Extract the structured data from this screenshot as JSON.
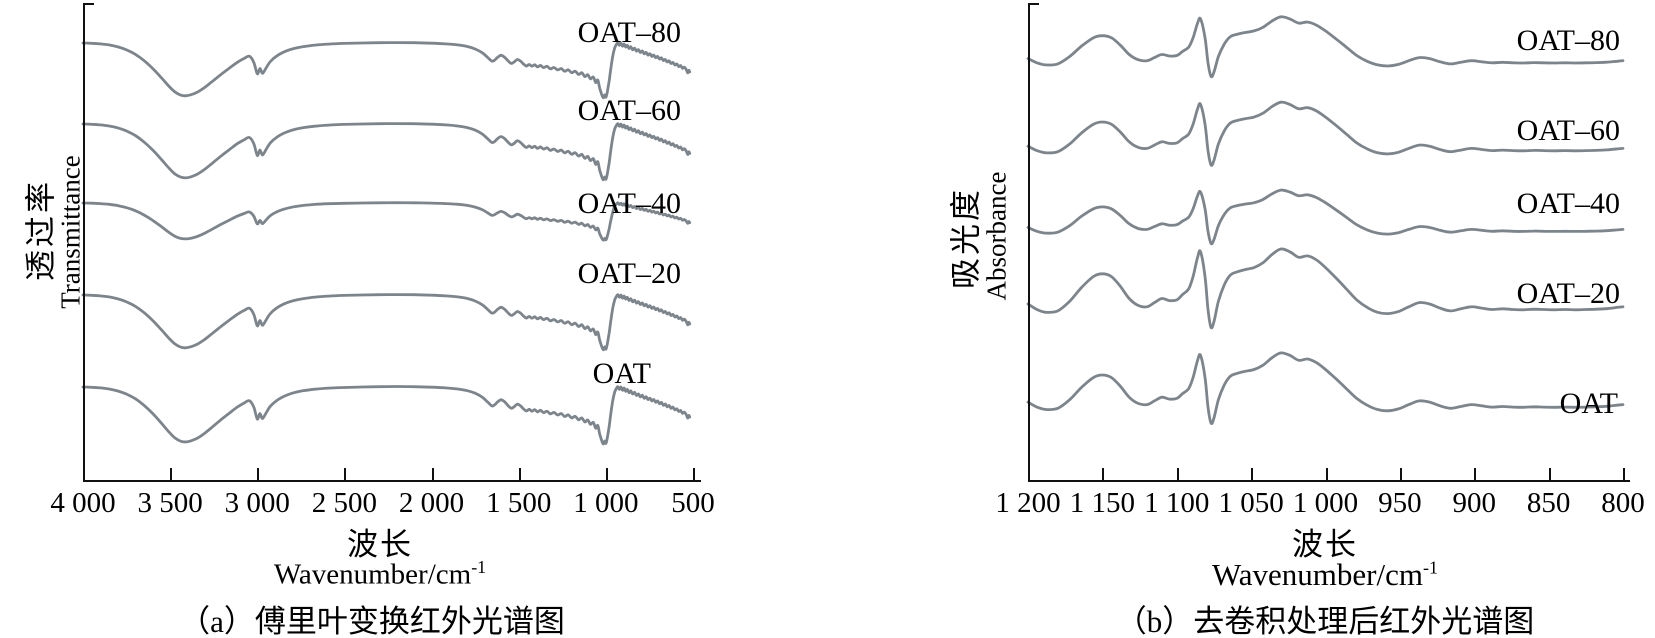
{
  "page": {
    "background": "#ffffff",
    "curve_color": "#7d858c",
    "axis_color": "#111111"
  },
  "panels": {
    "a": {
      "ylabel_cjk": "透过率",
      "ylabel_en": "Transmittance",
      "xlabel_cjk": "波长",
      "xlabel_en_base": "Wavenumber/cm",
      "xlabel_en_sup": "-1",
      "caption": "（a）傅里叶变换红外光谱图",
      "xtick_labels": [
        "4 000",
        "3 500",
        "3 000",
        "2 500",
        "2 000",
        "1 500",
        "1 000",
        "500"
      ]
    },
    "b": {
      "ylabel_cjk": "吸光度",
      "ylabel_en": "Absorbance",
      "xlabel_cjk": "波长",
      "xlabel_en_base": "Wavenumber/cm",
      "xlabel_en_sup": "-1",
      "caption": "（b）去卷积处理后红外光谱图",
      "xtick_labels": [
        "1 200",
        "1 150",
        "1 100",
        "1 050",
        "1 000",
        "950",
        "900",
        "850",
        "800"
      ]
    }
  },
  "chart_data": [
    {
      "panel": "a",
      "type": "line",
      "title": "（a）傅里叶变换红外光谱图",
      "xlabel": "波长 Wavenumber/cm-1",
      "ylabel": "透过率 Transmittance",
      "legend_position": "inline-right",
      "grid": false,
      "x_axis": {
        "max": 4000,
        "min": 500,
        "direction": "decreasing",
        "ticks": [
          4000,
          3500,
          3000,
          2500,
          2000,
          1500,
          1000,
          500
        ]
      },
      "y_axis": {
        "label": "Transmittance (arbitrary units, stacked offsets)",
        "ticks": []
      },
      "series": [
        {
          "name": "OAT–80",
          "relative_intensity": 1.0
        },
        {
          "name": "OAT–60",
          "relative_intensity": 1.02
        },
        {
          "name": "OAT–40",
          "relative_intensity": 0.68
        },
        {
          "name": "OAT–20",
          "relative_intensity": 1.0
        },
        {
          "name": "OAT",
          "relative_intensity": 1.04
        }
      ],
      "shared_profile_note": "transmittance vs wavenumber, 0-1 arbitrary scale, baseline 0.85; all five curves share this band shape and are vertically offset",
      "shared_profile": [
        [
          4000,
          0.85
        ],
        [
          3950,
          0.847
        ],
        [
          3900,
          0.84
        ],
        [
          3850,
          0.828
        ],
        [
          3800,
          0.806
        ],
        [
          3750,
          0.772
        ],
        [
          3700,
          0.722
        ],
        [
          3650,
          0.65
        ],
        [
          3600,
          0.56
        ],
        [
          3550,
          0.455
        ],
        [
          3505,
          0.355
        ],
        [
          3470,
          0.29
        ],
        [
          3440,
          0.258
        ],
        [
          3410,
          0.25
        ],
        [
          3380,
          0.262
        ],
        [
          3345,
          0.29
        ],
        [
          3305,
          0.34
        ],
        [
          3260,
          0.41
        ],
        [
          3210,
          0.49
        ],
        [
          3160,
          0.565
        ],
        [
          3115,
          0.63
        ],
        [
          3075,
          0.675
        ],
        [
          3045,
          0.7
        ],
        [
          3020,
          0.63
        ],
        [
          3000,
          0.5
        ],
        [
          2985,
          0.56
        ],
        [
          2970,
          0.505
        ],
        [
          2950,
          0.565
        ],
        [
          2925,
          0.64
        ],
        [
          2890,
          0.7
        ],
        [
          2850,
          0.745
        ],
        [
          2800,
          0.782
        ],
        [
          2740,
          0.808
        ],
        [
          2670,
          0.826
        ],
        [
          2590,
          0.838
        ],
        [
          2500,
          0.845
        ],
        [
          2400,
          0.85
        ],
        [
          2300,
          0.853
        ],
        [
          2200,
          0.855
        ],
        [
          2100,
          0.853
        ],
        [
          2000,
          0.848
        ],
        [
          1920,
          0.84
        ],
        [
          1850,
          0.828
        ],
        [
          1795,
          0.81
        ],
        [
          1750,
          0.782
        ],
        [
          1710,
          0.74
        ],
        [
          1678,
          0.685
        ],
        [
          1655,
          0.645
        ],
        [
          1640,
          0.652
        ],
        [
          1622,
          0.685
        ],
        [
          1602,
          0.71
        ],
        [
          1582,
          0.69
        ],
        [
          1560,
          0.645
        ],
        [
          1542,
          0.618
        ],
        [
          1526,
          0.635
        ],
        [
          1508,
          0.663
        ],
        [
          1490,
          0.645
        ],
        [
          1472,
          0.61
        ],
        [
          1456,
          0.588
        ],
        [
          1440,
          0.606
        ],
        [
          1424,
          0.586
        ],
        [
          1408,
          0.602
        ],
        [
          1392,
          0.578
        ],
        [
          1375,
          0.595
        ],
        [
          1357,
          0.57
        ],
        [
          1338,
          0.585
        ],
        [
          1318,
          0.556
        ],
        [
          1298,
          0.572
        ],
        [
          1276,
          0.544
        ],
        [
          1256,
          0.56
        ],
        [
          1236,
          0.528
        ],
        [
          1216,
          0.546
        ],
        [
          1196,
          0.512
        ],
        [
          1176,
          0.53
        ],
        [
          1156,
          0.492
        ],
        [
          1138,
          0.512
        ],
        [
          1120,
          0.468
        ],
        [
          1104,
          0.49
        ],
        [
          1088,
          0.442
        ],
        [
          1072,
          0.464
        ],
        [
          1058,
          0.4
        ],
        [
          1046,
          0.43
        ],
        [
          1036,
          0.34
        ],
        [
          1028,
          0.29
        ],
        [
          1020,
          0.245
        ],
        [
          1013,
          0.228
        ],
        [
          1006,
          0.26
        ],
        [
          999,
          0.235
        ],
        [
          991,
          0.3
        ],
        [
          981,
          0.42
        ],
        [
          970,
          0.58
        ],
        [
          959,
          0.715
        ],
        [
          949,
          0.795
        ],
        [
          940,
          0.832
        ],
        [
          931,
          0.853
        ],
        [
          922,
          0.824
        ],
        [
          913,
          0.849
        ],
        [
          904,
          0.814
        ],
        [
          895,
          0.838
        ],
        [
          886,
          0.803
        ],
        [
          877,
          0.824
        ],
        [
          867,
          0.788
        ],
        [
          857,
          0.808
        ],
        [
          846,
          0.773
        ],
        [
          835,
          0.792
        ],
        [
          824,
          0.757
        ],
        [
          813,
          0.775
        ],
        [
          802,
          0.742
        ],
        [
          791,
          0.76
        ],
        [
          780,
          0.727
        ],
        [
          769,
          0.744
        ],
        [
          758,
          0.712
        ],
        [
          747,
          0.728
        ],
        [
          736,
          0.698
        ],
        [
          725,
          0.713
        ],
        [
          714,
          0.683
        ],
        [
          703,
          0.698
        ],
        [
          692,
          0.667
        ],
        [
          681,
          0.682
        ],
        [
          670,
          0.65
        ],
        [
          659,
          0.664
        ],
        [
          648,
          0.634
        ],
        [
          637,
          0.648
        ],
        [
          626,
          0.617
        ],
        [
          615,
          0.63
        ],
        [
          604,
          0.6
        ],
        [
          593,
          0.612
        ],
        [
          582,
          0.582
        ],
        [
          571,
          0.594
        ],
        [
          560,
          0.563
        ],
        [
          549,
          0.575
        ],
        [
          538,
          0.545
        ],
        [
          530,
          0.51
        ],
        [
          524,
          0.54
        ],
        [
          519,
          0.522
        ]
      ]
    },
    {
      "panel": "b",
      "type": "line",
      "title": "（b）去卷积处理后红外光谱图",
      "xlabel": "波长 Wavenumber/cm-1",
      "ylabel": "吸光度 Absorbance",
      "legend_position": "inline-right",
      "grid": false,
      "x_axis": {
        "max": 1200,
        "min": 800,
        "direction": "decreasing",
        "ticks": [
          1200,
          1150,
          1100,
          1050,
          1000,
          950,
          900,
          850,
          800
        ]
      },
      "y_axis": {
        "label": "Absorbance (arbitrary units, stacked offsets)",
        "ticks": []
      },
      "series": [
        {
          "name": "OAT–80",
          "relative_intensity": 0.95
        },
        {
          "name": "OAT–60",
          "relative_intensity": 1.0
        },
        {
          "name": "OAT–40",
          "relative_intensity": 0.85
        },
        {
          "name": "OAT–20",
          "relative_intensity": 1.25
        },
        {
          "name": "OAT",
          "relative_intensity": 1.12
        }
      ],
      "shared_profile_note": "deconvoluted absorbance vs wavenumber, 0-1 arbitrary scale, baseline 0; all five curves share this band shape and are vertically offset",
      "shared_profile": [
        [
          1200,
          0.08
        ],
        [
          1194,
          0.04
        ],
        [
          1188,
          0.02
        ],
        [
          1180,
          0.03
        ],
        [
          1172,
          0.1
        ],
        [
          1164,
          0.2
        ],
        [
          1156,
          0.28
        ],
        [
          1150,
          0.3
        ],
        [
          1144,
          0.28
        ],
        [
          1138,
          0.21
        ],
        [
          1132,
          0.12
        ],
        [
          1126,
          0.07
        ],
        [
          1120,
          0.06
        ],
        [
          1115,
          0.09
        ],
        [
          1110,
          0.12
        ],
        [
          1105,
          0.105
        ],
        [
          1100,
          0.11
        ],
        [
          1096,
          0.15
        ],
        [
          1092,
          0.19
        ],
        [
          1089,
          0.28
        ],
        [
          1086,
          0.42
        ],
        [
          1084,
          0.46
        ],
        [
          1081,
          0.28
        ],
        [
          1079,
          0.04
        ],
        [
          1077,
          -0.09
        ],
        [
          1075,
          -0.05
        ],
        [
          1072,
          0.1
        ],
        [
          1068,
          0.22
        ],
        [
          1064,
          0.29
        ],
        [
          1059,
          0.315
        ],
        [
          1054,
          0.33
        ],
        [
          1048,
          0.345
        ],
        [
          1042,
          0.38
        ],
        [
          1036,
          0.44
        ],
        [
          1030,
          0.48
        ],
        [
          1024,
          0.46
        ],
        [
          1018,
          0.42
        ],
        [
          1012,
          0.43
        ],
        [
          1006,
          0.4
        ],
        [
          1000,
          0.345
        ],
        [
          993,
          0.27
        ],
        [
          986,
          0.19
        ],
        [
          979,
          0.11
        ],
        [
          972,
          0.055
        ],
        [
          965,
          0.02
        ],
        [
          958,
          0.01
        ],
        [
          951,
          0.025
        ],
        [
          944,
          0.06
        ],
        [
          937,
          0.09
        ],
        [
          930,
          0.08
        ],
        [
          923,
          0.05
        ],
        [
          916,
          0.03
        ],
        [
          909,
          0.045
        ],
        [
          902,
          0.06
        ],
        [
          895,
          0.05
        ],
        [
          888,
          0.04
        ],
        [
          881,
          0.045
        ],
        [
          874,
          0.04
        ],
        [
          867,
          0.038
        ],
        [
          860,
          0.042
        ],
        [
          853,
          0.04
        ],
        [
          846,
          0.038
        ],
        [
          839,
          0.04
        ],
        [
          832,
          0.038
        ],
        [
          825,
          0.04
        ],
        [
          818,
          0.042
        ],
        [
          811,
          0.046
        ],
        [
          804,
          0.055
        ],
        [
          800,
          0.06
        ]
      ]
    }
  ]
}
